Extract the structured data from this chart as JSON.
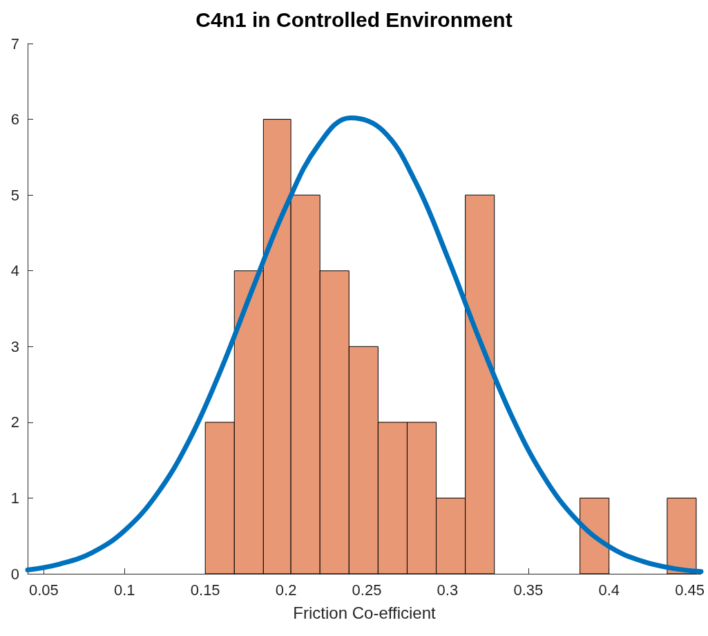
{
  "chart_data": {
    "type": "histogram",
    "title": "C4n1 in Controlled Environment",
    "xlabel": "Friction Co-efficient",
    "bins": [
      0.15,
      0.168,
      0.186,
      0.203,
      0.221,
      0.239,
      0.257,
      0.275,
      0.293,
      0.311,
      0.329,
      0.382,
      0.4,
      0.436,
      0.454
    ],
    "values": [
      2,
      4,
      6,
      5,
      4,
      3,
      2,
      2,
      1,
      5,
      0,
      1,
      0,
      1
    ],
    "color": "#e89875",
    "series": [
      {
        "type": "line",
        "color": "#0072bd",
        "x": [
          0.04,
          0.06,
          0.08,
          0.1,
          0.12,
          0.14,
          0.16,
          0.18,
          0.2,
          0.22,
          0.24,
          0.26,
          0.28,
          0.3,
          0.32,
          0.34,
          0.36,
          0.38,
          0.4,
          0.42,
          0.44,
          0.457
        ],
        "values": [
          0.05,
          0.13,
          0.28,
          0.57,
          1.05,
          1.76,
          2.71,
          3.8,
          4.85,
          5.66,
          6.02,
          5.85,
          5.18,
          4.18,
          3.08,
          2.07,
          1.27,
          0.71,
          0.36,
          0.17,
          0.07,
          0.03
        ]
      }
    ],
    "xlim": [
      0.04,
      0.457
    ],
    "xticks": [
      0.05,
      0.1,
      0.15,
      0.2,
      0.25,
      0.3,
      0.35,
      0.4,
      0.45
    ],
    "ylim": [
      0,
      7
    ],
    "yticks": [
      0,
      1,
      2,
      3,
      4,
      5,
      6,
      7
    ],
    "grid": false,
    "marker": "none",
    "line_style": "solid"
  }
}
